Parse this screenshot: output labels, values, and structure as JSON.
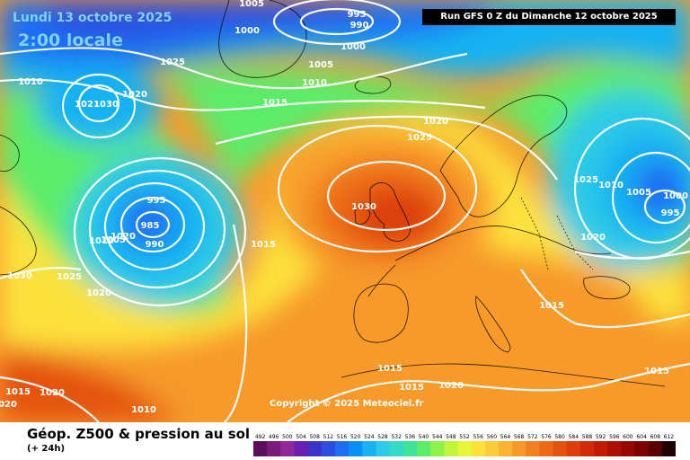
{
  "header": {
    "date": "Lundi 13 octobre 2025",
    "hour": "2:00 locale",
    "run": "Run GFS 0 Z du Dimanche 12 octobre 2025"
  },
  "copyright": "Copyright © 2025 Meteociel.fr",
  "footer": {
    "title": "Géop. Z500 & pression au sol",
    "subtitle": "(+ 24h)"
  },
  "legend": {
    "values": [
      "492",
      "496",
      "500",
      "504",
      "508",
      "512",
      "516",
      "520",
      "524",
      "528",
      "532",
      "536",
      "540",
      "544",
      "548",
      "552",
      "556",
      "560",
      "564",
      "568",
      "572",
      "576",
      "580",
      "584",
      "588",
      "592",
      "596",
      "600",
      "604",
      "608",
      "612"
    ],
    "colors": [
      "#5a0f5a",
      "#7a1a7a",
      "#92279b",
      "#6a1fb0",
      "#3c33c8",
      "#2a4ee0",
      "#1f6ef2",
      "#0a90f5",
      "#18b2f2",
      "#2fcbe6",
      "#33dbc4",
      "#3ee49a",
      "#5cec6a",
      "#8ef24a",
      "#bff53a",
      "#e9f53a",
      "#fde23c",
      "#fdcc3a",
      "#fbb333",
      "#f79a2a",
      "#f2821f",
      "#ec6a16",
      "#e4520f",
      "#dc3d0b",
      "#d12a08",
      "#c21a06",
      "#ad0f05",
      "#950805",
      "#7a0404",
      "#5a0202",
      "#200000"
    ]
  },
  "map": {
    "fills": [
      {
        "name": "band-green",
        "color": "#5cec6a"
      },
      {
        "name": "band-blue",
        "color": "#18b2f2"
      },
      {
        "name": "band-yellow",
        "color": "#e9f53a"
      },
      {
        "name": "band-orange",
        "color": "#f79a2a"
      },
      {
        "name": "band-red",
        "color": "#dc3d0b"
      }
    ],
    "isobar_labels": [
      "1005",
      "1000",
      "995",
      "990",
      "1000",
      "1025",
      "1005",
      "1010",
      "1010",
      "1020",
      "1021",
      "1030",
      "1015",
      "1020",
      "1025",
      "1020",
      "995",
      "985",
      "1010",
      "1005",
      "1030",
      "990",
      "1015",
      "1030",
      "1025",
      "1020",
      "1015",
      "1010",
      "1005",
      "1000",
      "995",
      "1020",
      "1025",
      "1015",
      "1015",
      "1020",
      "1015",
      "1015",
      "1020",
      "1010",
      "1020"
    ]
  }
}
